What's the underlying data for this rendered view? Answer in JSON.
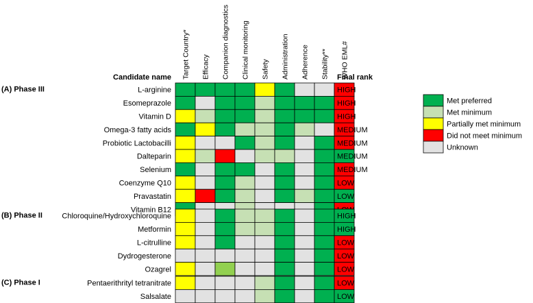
{
  "chart_data": {
    "type": "heatmap",
    "headers": {
      "candidate_name": "Candidate name",
      "final_rank": "Final rank"
    },
    "columns": [
      "Target Country*",
      "Efficacy",
      "Companion diagnostics",
      "Clinical monitoring",
      "Safety",
      "Administration",
      "Adherence",
      "Stability**",
      "WHO EML#"
    ],
    "colors": {
      "P": "#00b050",
      "M": "#c6e0b4",
      "Y": "#ffff00",
      "R": "#ff0000",
      "U": "#e2e2e2",
      "L": "#92d050"
    },
    "legend": [
      {
        "key": "P",
        "label": "Met preferred"
      },
      {
        "key": "M",
        "label": "Met minimum"
      },
      {
        "key": "Y",
        "label": "Partially met minimum"
      },
      {
        "key": "R",
        "label": "Did not meet minimum"
      },
      {
        "key": "U",
        "label": "Unknown"
      }
    ],
    "groups": [
      {
        "label": "(A) Phase III",
        "rows": [
          {
            "name": "L-arginine",
            "cells": [
              "P",
              "P",
              "P",
              "P",
              "Y",
              "P",
              "U",
              "U",
              "R"
            ],
            "rank": "HIGH"
          },
          {
            "name": "Esomeprazole",
            "cells": [
              "P",
              "U",
              "P",
              "P",
              "M",
              "P",
              "P",
              "P",
              "R"
            ],
            "rank": "HIGH"
          },
          {
            "name": "Vitamin D",
            "cells": [
              "Y",
              "M",
              "P",
              "P",
              "M",
              "P",
              "P",
              "P",
              "R"
            ],
            "rank": "HIGH"
          },
          {
            "name": "Omega-3 fatty acids",
            "cells": [
              "P",
              "Y",
              "P",
              "M",
              "M",
              "P",
              "M",
              "U",
              "R"
            ],
            "rank": "MEDIUM"
          },
          {
            "name": "Probiotic Lactobacilli",
            "cells": [
              "Y",
              "U",
              "U",
              "P",
              "M",
              "P",
              "U",
              "P",
              "R"
            ],
            "rank": "MEDIUM"
          },
          {
            "name": "Dalteparin",
            "cells": [
              "Y",
              "M",
              "R",
              "U",
              "M",
              "M",
              "U",
              "P",
              "P"
            ],
            "rank": "MEDIUM"
          },
          {
            "name": "Selenium",
            "cells": [
              "P",
              "U",
              "P",
              "P",
              "U",
              "P",
              "U",
              "P",
              "R"
            ],
            "rank": "MEDIUM"
          },
          {
            "name": "Coenzyme Q10",
            "cells": [
              "Y",
              "U",
              "P",
              "M",
              "U",
              "P",
              "U",
              "P",
              "R"
            ],
            "rank": "LOW"
          },
          {
            "name": "Pravastatin",
            "cells": [
              "Y",
              "R",
              "P",
              "M",
              "U",
              "P",
              "M",
              "P",
              "P"
            ],
            "rank": "LOW"
          },
          {
            "name": "Vitamin B12",
            "cells": [
              "P",
              "U",
              "U",
              "M",
              "U",
              "U",
              "U",
              "P",
              "R"
            ],
            "rank": "LOW"
          }
        ]
      },
      {
        "label": "(B) Phase II",
        "rows": [
          {
            "name": "Chloroquine/Hydroxychloroquine",
            "cells": [
              "Y",
              "U",
              "P",
              "M",
              "M",
              "P",
              "U",
              "P",
              "P"
            ],
            "rank": "HIGH"
          },
          {
            "name": "Metformin",
            "cells": [
              "Y",
              "U",
              "P",
              "M",
              "M",
              "P",
              "U",
              "P",
              "P"
            ],
            "rank": "HIGH"
          },
          {
            "name": "L-citrulline",
            "cells": [
              "Y",
              "U",
              "P",
              "U",
              "U",
              "P",
              "U",
              "P",
              "R"
            ],
            "rank": "LOW"
          },
          {
            "name": "Dydrogesterone",
            "cells": [
              "U",
              "U",
              "U",
              "U",
              "U",
              "P",
              "U",
              "P",
              "R"
            ],
            "rank": "LOW"
          },
          {
            "name": "Ozagrel",
            "cells": [
              "Y",
              "U",
              "L",
              "U",
              "U",
              "P",
              "U",
              "P",
              "R"
            ],
            "rank": "LOW"
          }
        ]
      },
      {
        "label": "(C) Phase I",
        "rows": [
          {
            "name": "Pentaerithrityl tetranitrate",
            "cells": [
              "Y",
              "U",
              "U",
              "U",
              "M",
              "P",
              "U",
              "P",
              "R"
            ],
            "rank": "LOW"
          },
          {
            "name": "Salsalate",
            "cells": [
              "U",
              "U",
              "U",
              "U",
              "M",
              "P",
              "U",
              "P",
              "P"
            ],
            "rank": "LOW"
          }
        ]
      }
    ]
  }
}
